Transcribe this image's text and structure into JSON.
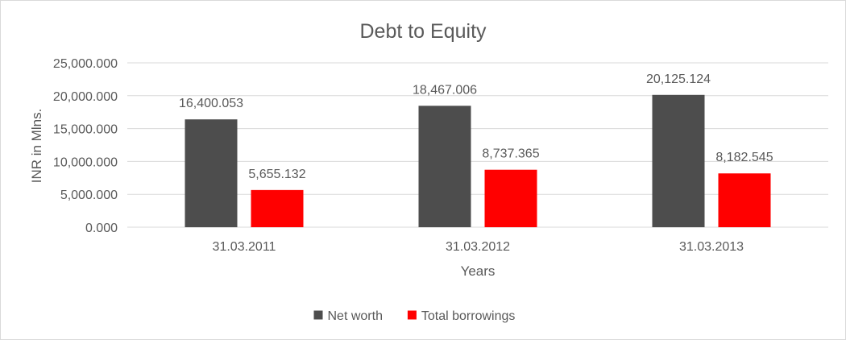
{
  "chart_data": {
    "type": "bar",
    "title": "Debt to Equity",
    "xlabel": "Years",
    "ylabel": "INR in Mlns.",
    "categories": [
      "31.03.2011",
      "31.03.2012",
      "31.03.2013"
    ],
    "series": [
      {
        "name": "Net worth",
        "color": "#4d4d4d",
        "values": [
          16400.053,
          18467.006,
          20125.124
        ],
        "labels": [
          "16,400.053",
          "18,467.006",
          "20,125.124"
        ]
      },
      {
        "name": "Total borrowings",
        "color": "#ff0000",
        "values": [
          5655.132,
          8737.365,
          8182.545
        ],
        "labels": [
          "5,655.132",
          "8,737.365",
          "8,182.545"
        ]
      }
    ],
    "ylim": [
      0,
      25000
    ],
    "yticks": [
      0,
      5000,
      10000,
      15000,
      20000,
      25000
    ],
    "ytick_labels": [
      "0.000",
      "5,000.000",
      "10,000.000",
      "15,000.000",
      "20,000.000",
      "25,000.000"
    ],
    "grid": true,
    "legend_position": "bottom"
  }
}
